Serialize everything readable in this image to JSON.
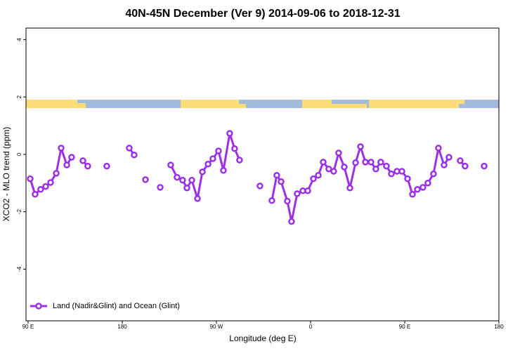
{
  "chart_data": {
    "type": "line",
    "title": "40N-45N December (Ver 9)   2014-09-06 to 2018-12-31",
    "x_label": "Longitude (deg E)",
    "y_label": "XCO2 - MLO trend (ppm)",
    "xlim": [
      88,
      540
    ],
    "ylim": [
      -5.8,
      4.4
    ],
    "xticks": [
      {
        "value": 90,
        "label": "90 E"
      },
      {
        "value": 180,
        "label": "180"
      },
      {
        "value": 270,
        "label": "90 W"
      },
      {
        "value": 360,
        "label": "0"
      },
      {
        "value": 450,
        "label": "90 E"
      },
      {
        "value": 540,
        "label": "180"
      }
    ],
    "yticks": [
      4,
      2,
      0,
      -2,
      -4
    ],
    "legend": "bottom-left",
    "series": [
      {
        "name": "Land (Nadir&Glint) and Ocean (Glint)",
        "color": "#9b30e8",
        "x": [
          92,
          96.7,
          102,
          106.8,
          111.5,
          116.9,
          121.6,
          127,
          131.6,
          137,
          142.4,
          147,
          156,
          165.2,
          176,
          186.7,
          191.4,
          197,
          202.2,
          209,
          216.3,
          221,
          226.3,
          232.4,
          237.7,
          241.8,
          246.5,
          251.9,
          256.6,
          262,
          266.6,
          272,
          276.7,
          282.7,
          287.4,
          292.1,
          302,
          311.6,
          317,
          323,
          327.7,
          331.8,
          337.8,
          341.8,
          347.2,
          352.6,
          357.3,
          362.7,
          367.4,
          372.1,
          377.4,
          382.1,
          386.8,
          392.2,
          397.6,
          403,
          407.7,
          412.4,
          417.7,
          422.4,
          427.1,
          432.5,
          437.2,
          442.6,
          447.3,
          452.7,
          457.4,
          462.1,
          467.4,
          472.1,
          477.5,
          482.2,
          487.6,
          492.3,
          498,
          503,
          507.7,
          516,
          525.9
        ],
        "values": [
          -0.85,
          -1.39,
          -1.22,
          -1.12,
          -0.98,
          -0.66,
          0.22,
          -0.37,
          -0.1,
          null,
          -0.22,
          -0.41,
          null,
          -0.41,
          null,
          0.22,
          -0.02,
          null,
          -0.88,
          null,
          -1.15,
          null,
          -0.37,
          -0.8,
          -0.9,
          -1.17,
          -0.9,
          -1.54,
          -0.61,
          -0.34,
          -0.15,
          0.12,
          -0.56,
          0.73,
          0.2,
          -0.2,
          null,
          -1.1,
          null,
          -1.61,
          -0.73,
          -0.95,
          -1.63,
          -2.34,
          -1.37,
          -1.27,
          -1.27,
          -0.85,
          -0.73,
          -0.27,
          -0.51,
          -0.59,
          0.05,
          -0.44,
          -1.17,
          -0.29,
          0.27,
          -0.27,
          -0.27,
          -0.51,
          -0.27,
          -0.41,
          -0.68,
          -0.59,
          -0.59,
          -0.85,
          -1.39,
          -1.22,
          -1.15,
          -1.0,
          -0.68,
          0.22,
          -0.37,
          -0.1,
          null,
          -0.22,
          -0.41,
          null,
          -0.41
        ]
      }
    ]
  }
}
